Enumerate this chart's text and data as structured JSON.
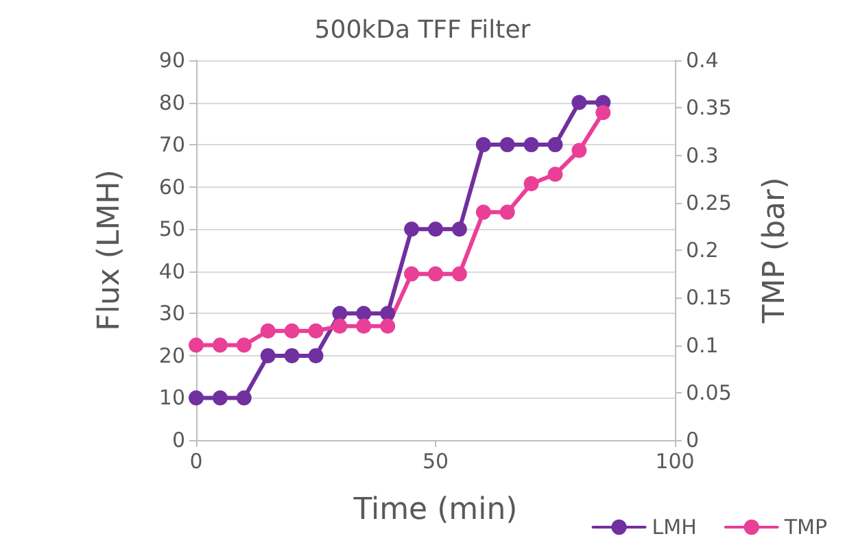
{
  "chart_data": {
    "type": "line",
    "title": "500kDa TFF Filter",
    "xlabel": "Time (min)",
    "ylabel": "Flux (LMH)",
    "y2label": "TMP (bar)",
    "x": [
      0,
      5,
      10,
      15,
      20,
      25,
      30,
      35,
      40,
      45,
      50,
      55,
      60,
      65,
      70,
      75,
      80,
      85
    ],
    "series": [
      {
        "name": "LMH",
        "color": "#7030a0",
        "values": [
          10,
          10,
          10,
          20,
          20,
          20,
          30,
          30,
          30,
          50,
          50,
          50,
          70,
          70,
          70,
          70,
          80,
          80
        ]
      },
      {
        "name": "TMP",
        "color": "#ea3f96",
        "axis": "y2",
        "values": [
          0.1,
          0.1,
          0.1,
          0.115,
          0.115,
          0.115,
          0.12,
          0.12,
          0.12,
          0.175,
          0.175,
          0.175,
          0.24,
          0.24,
          0.27,
          0.28,
          0.305,
          0.345
        ]
      }
    ],
    "xlim": [
      0,
      100
    ],
    "xticks": [
      0,
      50,
      100
    ],
    "ylim": [
      0,
      90
    ],
    "yticks": [
      0,
      10,
      20,
      30,
      40,
      50,
      60,
      70,
      80,
      90
    ],
    "y2lim": [
      0,
      0.4
    ],
    "y2ticks": [
      0,
      0.05,
      0.1,
      0.15,
      0.2,
      0.25,
      0.3,
      0.35,
      0.4
    ],
    "grid": "y",
    "legend": "bottom right",
    "marker": "circle",
    "line_style": "solid"
  }
}
